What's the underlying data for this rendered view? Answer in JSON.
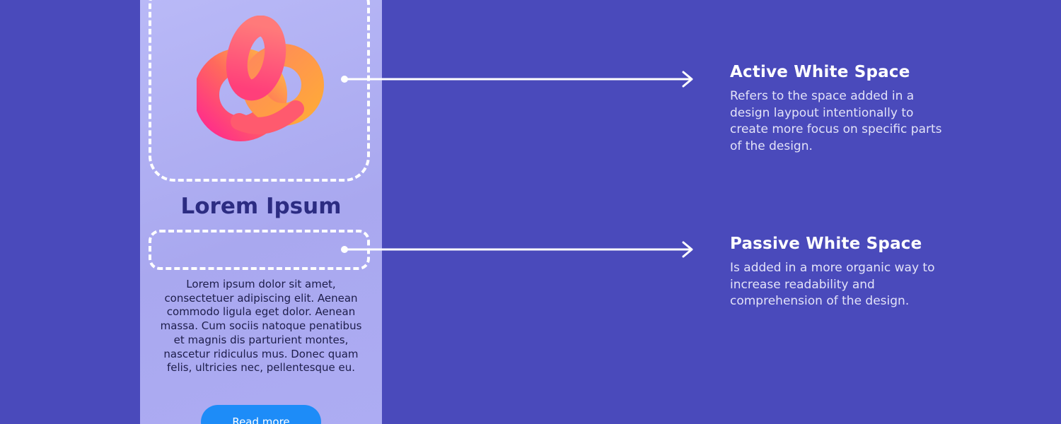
{
  "card": {
    "title": "Lorem Ipsum",
    "body": "Lorem ipsum dolor sit amet, consectetuer adipiscing elit. Aenean commodo ligula eget dolor. Aenean massa. Cum sociis natoque penatibus et magnis dis parturient montes, nascetur ridiculus mus. Donec quam felis, ultricies nec, pellentesque eu.",
    "button_label": "Read more",
    "image_icon": "3d-knot-icon"
  },
  "labels": {
    "active": {
      "title": "Active White Space",
      "description": "Refers to the space added in a design laypout intentionally to create more focus on specific parts of the design."
    },
    "passive": {
      "title": "Passive White Space",
      "description": "Is added in a more organic way to increase readability and comprehension of the design."
    }
  },
  "colors": {
    "background": "#4a4abb",
    "card": "#adacf3",
    "title": "#2c2c82",
    "button": "#1d8cf8",
    "knot_pink": "#ff2e8a",
    "knot_orange": "#ffb347"
  }
}
